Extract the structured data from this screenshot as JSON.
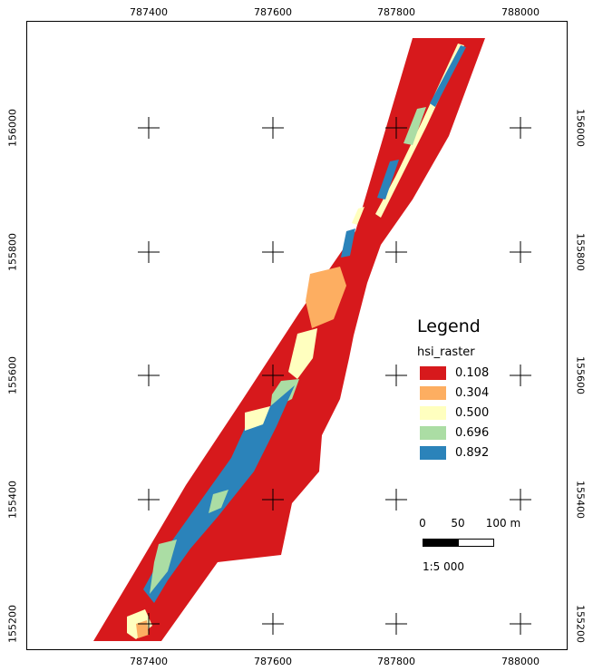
{
  "map": {
    "x_ticks": [
      "787400",
      "787600",
      "787800",
      "788000"
    ],
    "y_ticks": [
      "156000",
      "155800",
      "155600",
      "155400",
      "155200"
    ]
  },
  "legend": {
    "title": "Legend",
    "variable": "hsi_raster",
    "items": [
      {
        "label": "0.108",
        "color": "#d7191c"
      },
      {
        "label": "0.304",
        "color": "#fdae61"
      },
      {
        "label": "0.500",
        "color": "#ffffbf"
      },
      {
        "label": "0.696",
        "color": "#abdda4"
      },
      {
        "label": "0.892",
        "color": "#2b83ba"
      }
    ]
  },
  "scalebar": {
    "labels": [
      "0",
      "50",
      "100 m"
    ],
    "ratio": "1:5 000"
  }
}
